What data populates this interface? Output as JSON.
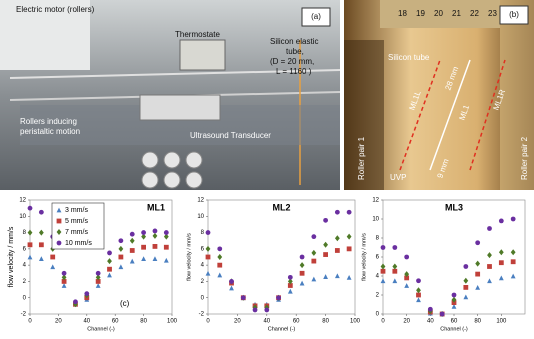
{
  "photo_a": {
    "label": "(a)",
    "motor": "Electric motor (rollers)",
    "thermostate": "Thermostate",
    "tube": [
      "Silicon elastic",
      "tube,",
      "(D = 20 mm,",
      "L = 1160 )"
    ],
    "rollers": [
      "Rollers inducing",
      "peristaltic motion"
    ],
    "transducer": "Ultrasound Transducer"
  },
  "photo_b": {
    "label": "(b)",
    "ruler": [
      "18",
      "19",
      "20",
      "21",
      "22",
      "23"
    ],
    "tube": "Silicon tube",
    "line_left": "ML1L",
    "line_center": "ML1",
    "line_right": "ML1R",
    "dist_long": "28 mm",
    "dist_short": "9 mm",
    "roller_1": "Roller pair 1",
    "roller_2": "Roller pair 2",
    "probe": "UVP"
  },
  "chart_data": [
    {
      "type": "scatter",
      "title": "ML1",
      "panel_label": "(c)",
      "x_label": "Channel (-)",
      "y_label": "flow velocity / mm/s",
      "x": [
        0,
        8,
        16,
        24,
        32,
        40,
        48,
        56,
        64,
        72,
        80,
        88,
        96
      ],
      "xlim": [
        0,
        100
      ],
      "xticks": [
        0,
        20,
        40,
        60,
        80,
        100
      ],
      "ylim": [
        -2,
        12
      ],
      "yticks": [
        -2,
        0,
        2,
        4,
        6,
        8,
        10,
        12
      ],
      "legend": "top-left",
      "series": [
        {
          "name": "3 mm/s",
          "color": "#4a7fc0",
          "marker": "triangle",
          "values": [
            5,
            4.8,
            3.8,
            1.5,
            -0.8,
            -0.2,
            1.5,
            2.8,
            3.8,
            4.5,
            4.8,
            4.8,
            4.6
          ]
        },
        {
          "name": "5 mm/s",
          "color": "#c0403a",
          "marker": "square",
          "values": [
            6.5,
            6.5,
            5,
            2,
            -0.8,
            0,
            2,
            3.5,
            5,
            5.8,
            6.2,
            6.3,
            6.2
          ]
        },
        {
          "name": "7 mm/s",
          "color": "#4f7a28",
          "marker": "diamond",
          "values": [
            8,
            8,
            6,
            2.5,
            -0.8,
            0.3,
            2.5,
            4.5,
            6,
            7,
            7.5,
            7.6,
            7.5
          ]
        },
        {
          "name": "10 mm/s",
          "color": "#6a2fa0",
          "marker": "circle",
          "values": [
            11,
            10.5,
            7.5,
            3,
            -0.5,
            0.5,
            3,
            5.5,
            7,
            7.8,
            8,
            8.2,
            8
          ]
        }
      ]
    },
    {
      "type": "scatter",
      "title": "ML2",
      "x_label": "Channel (-)",
      "y_label": "flow velocity / mm/s",
      "x": [
        0,
        8,
        16,
        24,
        32,
        40,
        48,
        56,
        64,
        72,
        80,
        88,
        96
      ],
      "xlim": [
        0,
        100
      ],
      "xticks": [
        0,
        20,
        40,
        60,
        80,
        100
      ],
      "ylim": [
        -2,
        12
      ],
      "yticks": [
        -2,
        0,
        2,
        4,
        6,
        8,
        10,
        12
      ],
      "series": [
        {
          "color": "#4a7fc0",
          "marker": "triangle",
          "values": [
            3,
            2.8,
            1.2,
            0,
            -0.8,
            -0.8,
            -0.2,
            0.8,
            1.8,
            2.3,
            2.6,
            2.7,
            2.5
          ]
        },
        {
          "color": "#c0403a",
          "marker": "square",
          "values": [
            5,
            4,
            1.8,
            0,
            -1,
            -1,
            0,
            1.5,
            3,
            4.5,
            5.3,
            5.8,
            6
          ]
        },
        {
          "color": "#4f7a28",
          "marker": "diamond",
          "values": [
            6,
            5,
            2,
            0,
            -1.2,
            -1.2,
            0,
            2,
            4,
            5.5,
            6.5,
            7.3,
            7.5
          ]
        },
        {
          "color": "#6a2fa0",
          "marker": "circle",
          "values": [
            8,
            6,
            2,
            0,
            -1.5,
            -1.5,
            0,
            2.5,
            5,
            7.5,
            9.5,
            10.5,
            10.5
          ]
        }
      ]
    },
    {
      "type": "scatter",
      "title": "ML3",
      "x_label": "Channel (-)",
      "y_label": "flow velocity / mm/s",
      "x": [
        0,
        10,
        20,
        30,
        40,
        50,
        60,
        70,
        80,
        90,
        100,
        110
      ],
      "xlim": [
        0,
        120
      ],
      "xticks": [
        0,
        20,
        40,
        60,
        80,
        100
      ],
      "ylim": [
        0,
        12
      ],
      "yticks": [
        0,
        2,
        4,
        6,
        8,
        10,
        12
      ],
      "series": [
        {
          "color": "#4a7fc0",
          "marker": "triangle",
          "values": [
            3.5,
            3.5,
            3,
            1.5,
            0.1,
            0,
            0.8,
            1.8,
            2.8,
            3.5,
            3.8,
            4
          ]
        },
        {
          "color": "#c0403a",
          "marker": "square",
          "values": [
            4.5,
            4.5,
            3.8,
            2,
            0.2,
            0,
            1.2,
            2.8,
            4.2,
            5,
            5.4,
            5.5
          ]
        },
        {
          "color": "#4f7a28",
          "marker": "diamond",
          "values": [
            5,
            5,
            4.2,
            2.5,
            0.3,
            0,
            1.5,
            3.5,
            5.3,
            6.2,
            6.5,
            6.5
          ]
        },
        {
          "color": "#6a2fa0",
          "marker": "circle",
          "values": [
            7,
            7,
            6,
            3.5,
            0.5,
            0,
            2,
            5,
            7.5,
            9,
            9.8,
            10
          ]
        }
      ]
    }
  ]
}
